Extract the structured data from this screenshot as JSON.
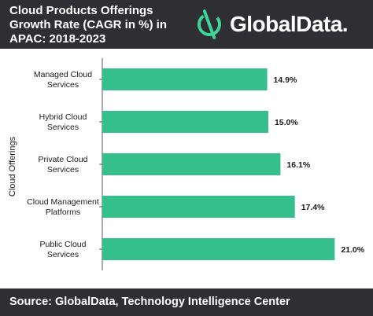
{
  "header": {
    "title": "Cloud Products Offerings\nGrowth Rate (CAGR in %) in\nAPAC: 2018-2023",
    "logo_text": "GlobalData.",
    "logo_icon": "globaldata-logo-icon"
  },
  "footer": {
    "source": "Source: GlobalData, Technology Intelligence Center"
  },
  "colors": {
    "bar": "#35bf8c",
    "dark": "#2e2e33",
    "logo_accent": "#3dd69a"
  },
  "chart_data": {
    "type": "bar",
    "orientation": "horizontal",
    "ylabel": "Cloud Offerings",
    "categories": [
      [
        "Managed Cloud",
        "Services"
      ],
      [
        "Hybrid Cloud",
        "Services"
      ],
      [
        "Private Cloud",
        "Services"
      ],
      [
        "Cloud Management",
        "Platforms"
      ],
      [
        "Public Cloud",
        "Services"
      ]
    ],
    "values": [
      14.9,
      15.0,
      16.1,
      17.4,
      21.0
    ],
    "value_labels": [
      "14.9%",
      "15.0%",
      "16.1%",
      "17.4%",
      "21.0%"
    ],
    "xlim": [
      0,
      21.9
    ],
    "grid": false,
    "legend": "none"
  }
}
